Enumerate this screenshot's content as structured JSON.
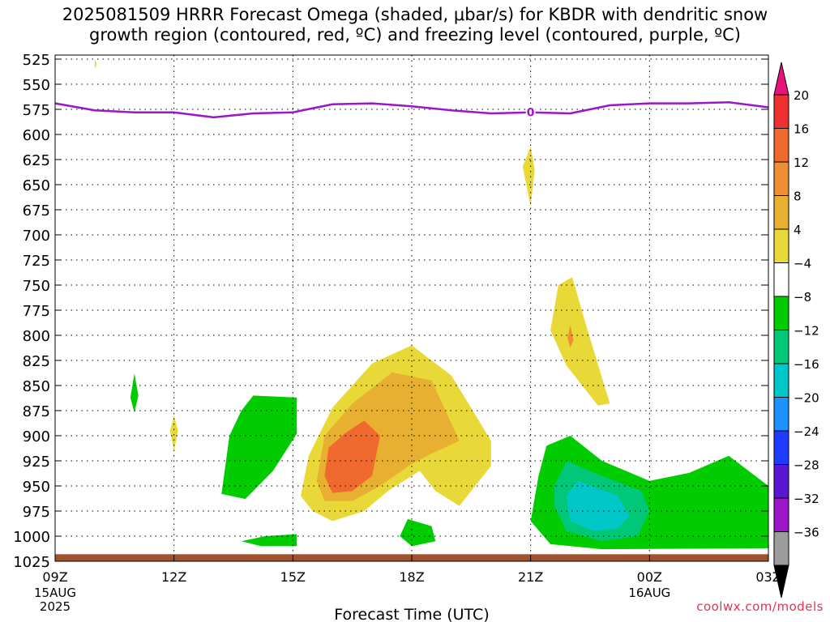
{
  "chart_data": {
    "type": "heatmap",
    "title_line1": "2025081509 HRRR Forecast Omega (shaded, μbar/s) for KBDR with dendritic snow",
    "title_line2": "growth region (contoured, red, ºC) and freezing level (contoured, purple, ºC)",
    "xlabel": "Forecast Time (UTC)",
    "ylabel": "",
    "x_ticks": [
      {
        "hour": 0,
        "label": "09Z",
        "sub1": "15AUG",
        "sub2": "2025"
      },
      {
        "hour": 3,
        "label": "12Z",
        "sub1": "",
        "sub2": ""
      },
      {
        "hour": 6,
        "label": "15Z",
        "sub1": "",
        "sub2": ""
      },
      {
        "hour": 9,
        "label": "18Z",
        "sub1": "",
        "sub2": ""
      },
      {
        "hour": 12,
        "label": "21Z",
        "sub1": "",
        "sub2": ""
      },
      {
        "hour": 15,
        "label": "00Z",
        "sub1": "16AUG",
        "sub2": ""
      },
      {
        "hour": 18,
        "label": "03Z",
        "sub1": "",
        "sub2": ""
      }
    ],
    "y_ticks": [
      525,
      550,
      575,
      600,
      625,
      650,
      675,
      700,
      725,
      750,
      775,
      800,
      825,
      850,
      875,
      900,
      925,
      950,
      975,
      1000,
      1025
    ],
    "xlim": [
      0,
      18
    ],
    "ylim": [
      525,
      1025
    ],
    "grid": true,
    "colorbar": {
      "labels": [
        "20",
        "16",
        "12",
        "8",
        "4",
        "−4",
        "−8",
        "−12",
        "−16",
        "−20",
        "−24",
        "−28",
        "−32",
        "−36"
      ],
      "colors_top_to_bottom": [
        "#e8137a",
        "#ee3030",
        "#f06a30",
        "#f08e33",
        "#e8b030",
        "#e8d838",
        "#ffffff",
        "#00cc00",
        "#00c878",
        "#00c8c8",
        "#1e90ff",
        "#1e3cff",
        "#5a16d0",
        "#9b16c8",
        "#9c9c9c",
        "#000000"
      ],
      "mapping": "above_4: yellow,orange; below_-4: green,cyan,blue,purple"
    },
    "freezing_level": {
      "label": "0",
      "color": "#9b16c8",
      "x": [
        0,
        1,
        2,
        3,
        4,
        5,
        6,
        7,
        8,
        9,
        10,
        11,
        12,
        13,
        14,
        15,
        16,
        17,
        18
      ],
      "y": [
        569,
        576,
        578,
        578,
        583,
        579,
        578,
        570,
        569,
        572,
        576,
        579,
        578,
        579,
        571,
        569,
        569,
        568,
        573
      ]
    },
    "omega_regions": [
      {
        "level": "positive_4_8",
        "color": "#e8d838",
        "points": [
          [
            1.0,
            525
          ],
          [
            1.05,
            530
          ],
          [
            1.0,
            535
          ]
        ]
      },
      {
        "level": "positive_4_8",
        "color": "#e8d838",
        "points": [
          [
            3.0,
            880
          ],
          [
            3.1,
            895
          ],
          [
            3.0,
            915
          ],
          [
            2.9,
            895
          ]
        ]
      },
      {
        "level": "positive_4_8",
        "color": "#e8d838",
        "points": [
          [
            12.0,
            612
          ],
          [
            12.1,
            635
          ],
          [
            12.0,
            672
          ],
          [
            11.8,
            632
          ]
        ]
      },
      {
        "level": "positive_4_8",
        "color": "#e8d838",
        "points": [
          [
            13.05,
            742
          ],
          [
            13.4,
            790
          ],
          [
            14.0,
            868
          ],
          [
            13.7,
            870
          ],
          [
            12.9,
            830
          ],
          [
            12.5,
            795
          ],
          [
            12.7,
            750
          ]
        ]
      },
      {
        "level": "positive_8_12",
        "color": "#f08e33",
        "points": [
          [
            13.0,
            790
          ],
          [
            13.08,
            805
          ],
          [
            13.0,
            812
          ],
          [
            12.93,
            803
          ]
        ]
      },
      {
        "level": "positive_4_8",
        "color": "#e8d838",
        "points": [
          [
            9.0,
            810
          ],
          [
            10.0,
            840
          ],
          [
            11.0,
            905
          ],
          [
            11.0,
            930
          ],
          [
            10.2,
            970
          ],
          [
            9.6,
            955
          ],
          [
            9.2,
            935
          ],
          [
            8.4,
            955
          ],
          [
            7.8,
            975
          ],
          [
            7.0,
            985
          ],
          [
            6.5,
            975
          ],
          [
            6.2,
            960
          ],
          [
            6.4,
            920
          ],
          [
            7.0,
            872
          ],
          [
            8.0,
            828
          ]
        ]
      },
      {
        "level": "positive_8_12",
        "color": "#e8b030",
        "points": [
          [
            8.5,
            837
          ],
          [
            9.5,
            845
          ],
          [
            10.2,
            905
          ],
          [
            9.5,
            918
          ],
          [
            9.0,
            928
          ],
          [
            8.2,
            950
          ],
          [
            7.5,
            965
          ],
          [
            6.8,
            965
          ],
          [
            6.6,
            945
          ],
          [
            6.8,
            900
          ],
          [
            7.5,
            868
          ]
        ]
      },
      {
        "level": "positive_12_16",
        "color": "#f06a30",
        "points": [
          [
            7.8,
            885
          ],
          [
            8.2,
            900
          ],
          [
            8.0,
            940
          ],
          [
            7.5,
            955
          ],
          [
            7.0,
            957
          ],
          [
            6.8,
            940
          ],
          [
            6.9,
            912
          ],
          [
            7.3,
            898
          ]
        ]
      },
      {
        "level": "negative_4_8",
        "color": "#00cc00",
        "points": [
          [
            2.0,
            838
          ],
          [
            2.1,
            860
          ],
          [
            2.0,
            877
          ],
          [
            1.9,
            862
          ]
        ]
      },
      {
        "level": "negative_4_8",
        "color": "#00cc00",
        "points": [
          [
            5.0,
            860
          ],
          [
            6.1,
            862
          ],
          [
            6.1,
            898
          ],
          [
            5.5,
            935
          ],
          [
            4.8,
            963
          ],
          [
            4.2,
            958
          ],
          [
            4.4,
            900
          ],
          [
            4.7,
            875
          ]
        ]
      },
      {
        "level": "negative_4_8",
        "color": "#00cc00",
        "points": [
          [
            4.7,
            1005
          ],
          [
            5.3,
            1000
          ],
          [
            6.1,
            998
          ],
          [
            6.1,
            1010
          ],
          [
            5.2,
            1010
          ]
        ]
      },
      {
        "level": "negative_4_8",
        "color": "#00cc00",
        "points": [
          [
            8.9,
            983
          ],
          [
            9.5,
            990
          ],
          [
            9.6,
            1005
          ],
          [
            9.0,
            1010
          ],
          [
            8.7,
            1000
          ]
        ]
      },
      {
        "level": "negative_4_8",
        "color": "#00cc00",
        "points": [
          [
            12.4,
            910
          ],
          [
            13.0,
            900
          ],
          [
            13.8,
            925
          ],
          [
            15.0,
            945
          ],
          [
            16.0,
            937
          ],
          [
            17.0,
            920
          ],
          [
            18.0,
            950
          ],
          [
            18.0,
            1012
          ],
          [
            13.8,
            1013
          ],
          [
            12.5,
            1008
          ],
          [
            12.0,
            985
          ],
          [
            12.2,
            940
          ]
        ]
      },
      {
        "level": "negative_8_12",
        "color": "#00c878",
        "points": [
          [
            12.9,
            925
          ],
          [
            13.8,
            940
          ],
          [
            14.8,
            955
          ],
          [
            15.0,
            975
          ],
          [
            14.7,
            1000
          ],
          [
            13.8,
            1005
          ],
          [
            12.9,
            995
          ],
          [
            12.6,
            970
          ],
          [
            12.6,
            950
          ]
        ]
      },
      {
        "level": "negative_12_16",
        "color": "#00c8c8",
        "points": [
          [
            13.2,
            945
          ],
          [
            14.2,
            960
          ],
          [
            14.5,
            980
          ],
          [
            14.2,
            992
          ],
          [
            13.6,
            995
          ],
          [
            13.0,
            985
          ],
          [
            12.9,
            960
          ]
        ]
      }
    ],
    "terrain_band": {
      "level_top": 1018,
      "level_bottom": 1025,
      "color": "#a0522d"
    }
  },
  "credit": "coolwx.com/models"
}
